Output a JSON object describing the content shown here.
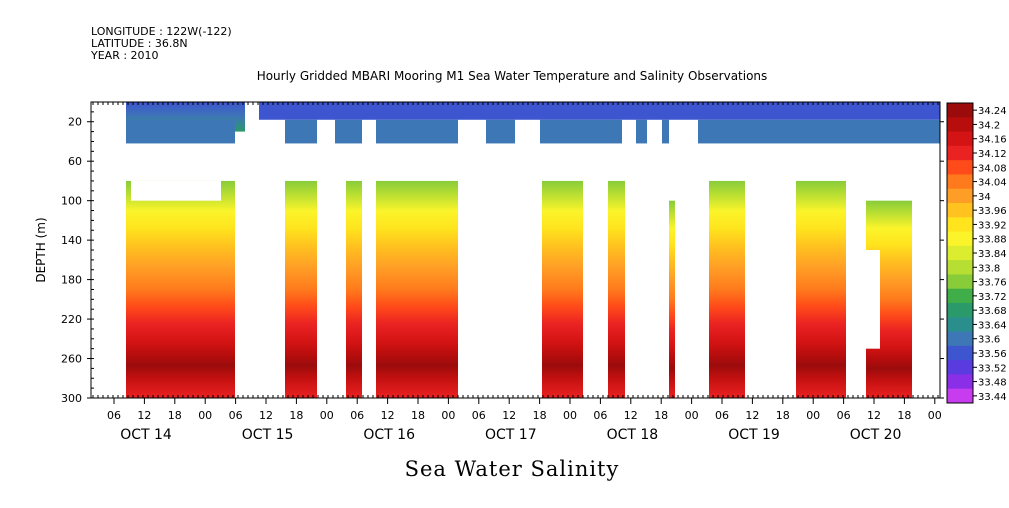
{
  "header": {
    "longitude": "LONGITUDE : 122W(-122)",
    "latitude": "LATITUDE : 36.8N",
    "year": "YEAR : 2010",
    "title": "Hourly Gridded MBARI Mooring M1 Sea Water Temperature and Salinity Observations"
  },
  "chart_data": {
    "type": "heatmap",
    "title": "Hourly Gridded MBARI Mooring M1 Sea Water Temperature and Salinity Observations",
    "xlabel": "Sea Water Salinity",
    "ylabel": "DEPTH (m)",
    "ylim": [
      300,
      0
    ],
    "y_ticks": [
      "20",
      "60",
      "100",
      "140",
      "180",
      "220",
      "260",
      "300"
    ],
    "x_hour_ticks": [
      "06",
      "12",
      "18",
      "00",
      "06",
      "12",
      "18",
      "00",
      "06",
      "12",
      "18",
      "00",
      "06",
      "12",
      "18",
      "00",
      "06",
      "12",
      "18",
      "00",
      "06",
      "12",
      "18",
      "00",
      "06",
      "12",
      "18",
      "00"
    ],
    "x_day_labels": [
      "OCT 14",
      "OCT 15",
      "OCT 16",
      "OCT 17",
      "OCT 18",
      "OCT 19",
      "OCT 20"
    ],
    "colorbar_levels": [
      "34.24",
      "34.2",
      "34.16",
      "34.12",
      "34.08",
      "34.04",
      "34",
      "33.96",
      "33.92",
      "33.88",
      "33.84",
      "33.8",
      "33.76",
      "33.72",
      "33.68",
      "33.64",
      "33.6",
      "33.56",
      "33.52",
      "33.48",
      "33.44"
    ],
    "colors": {
      "34.24": "#9b0b0b",
      "34.2": "#b80d0d",
      "34.16": "#d41414",
      "34.12": "#ea2222",
      "34.08": "#ff4a1a",
      "34.04": "#ff7a1c",
      "34": "#ff9e26",
      "33.96": "#ffc21f",
      "33.92": "#ffe41e",
      "33.88": "#fbf42a",
      "33.84": "#dcec2e",
      "33.8": "#b7de33",
      "33.76": "#88cc3a",
      "33.72": "#3fae49",
      "33.68": "#2a9a6a",
      "33.64": "#2a8f8c",
      "33.6": "#3d77b5",
      "33.56": "#3d55cf",
      "33.52": "#5a3be0",
      "33.48": "#8a2ee8",
      "33.44": "#c83cf0"
    }
  }
}
